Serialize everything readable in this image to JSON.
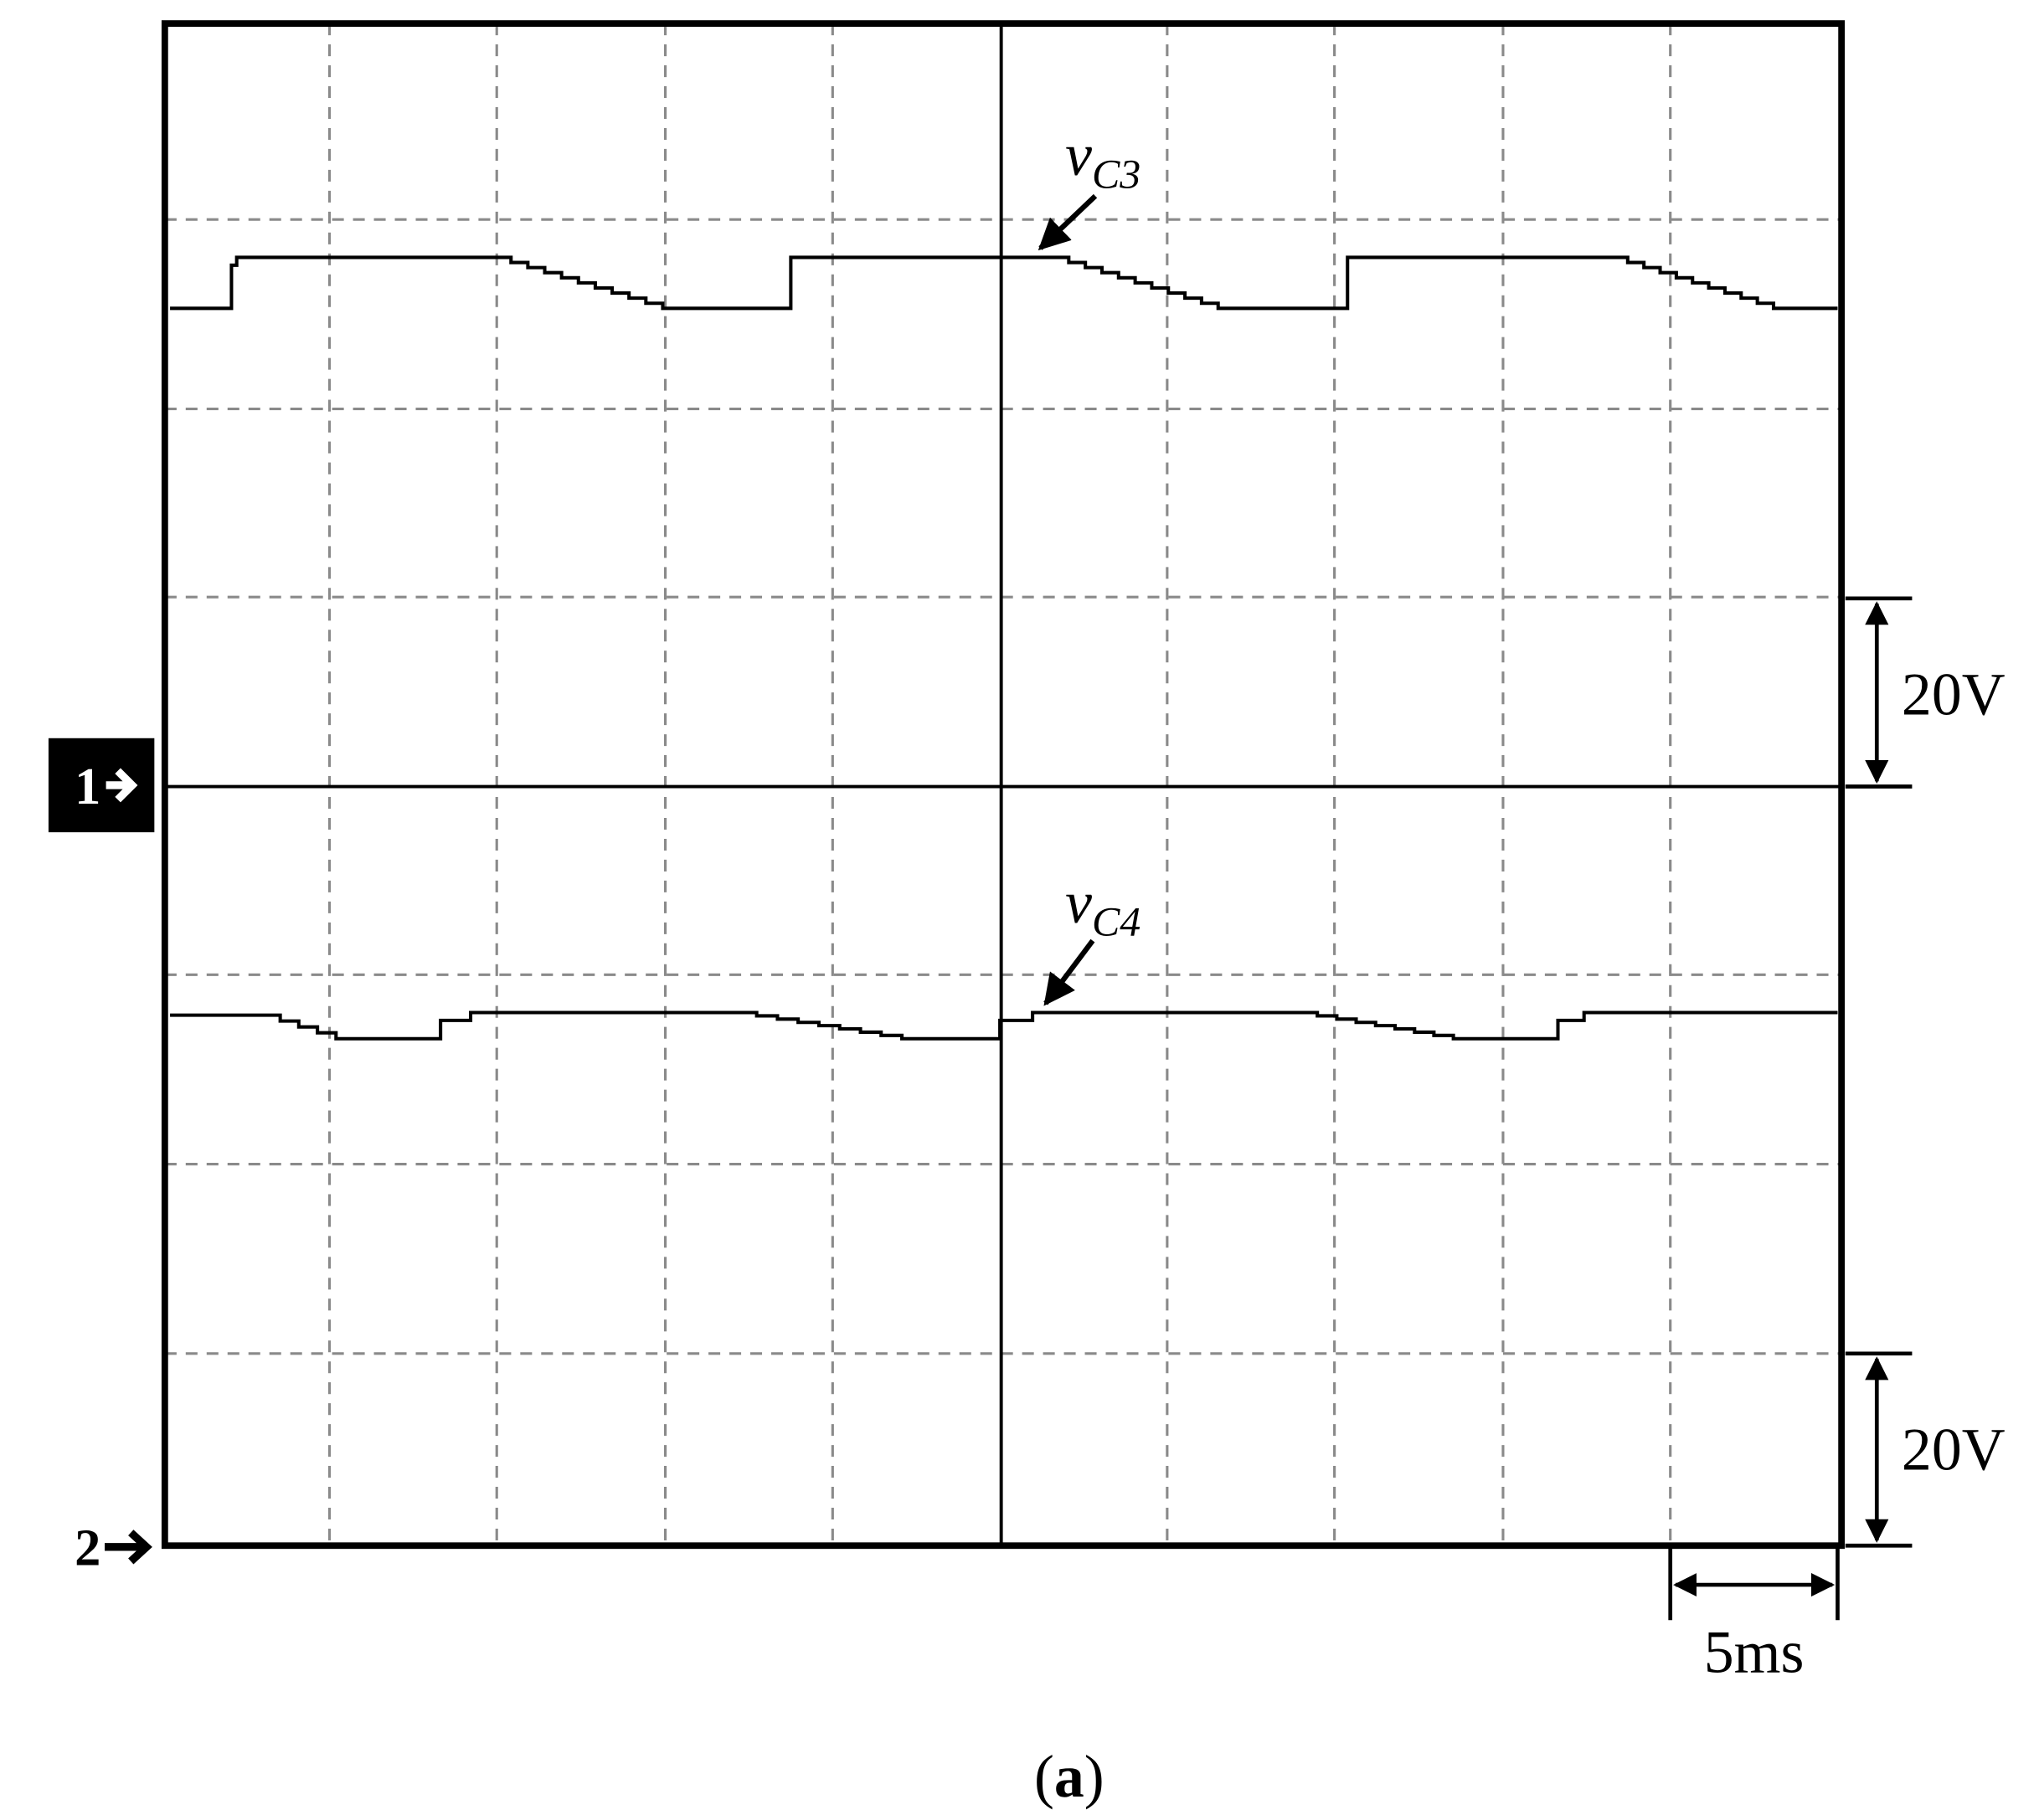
{
  "annotations": [
    {
      "symbol": "v",
      "subscript": "C3"
    },
    {
      "symbol": "v",
      "subscript": "C4"
    }
  ],
  "channels": [
    "1",
    "2"
  ],
  "scales": [
    "20V",
    "20V"
  ],
  "time_scale": "5ms",
  "caption": {
    "open": "(",
    "label": "a",
    "close": ")"
  }
}
